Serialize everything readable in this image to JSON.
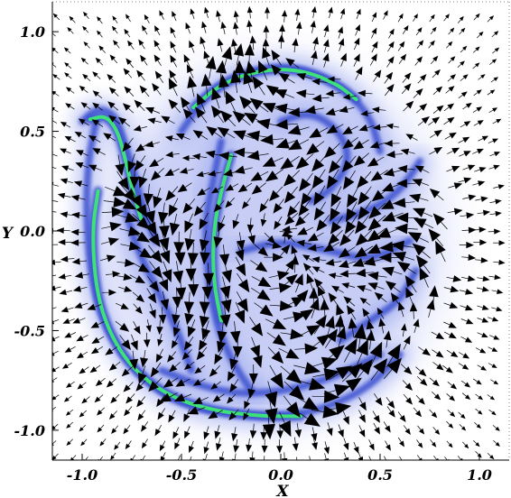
{
  "chart_data": {
    "type": "vector-field",
    "title": "",
    "xlabel": "X",
    "ylabel": "Y",
    "xlim": [
      -1.15,
      1.15
    ],
    "ylim": [
      -1.15,
      1.15
    ],
    "x_ticks": [
      -1.0,
      -0.5,
      0.0,
      0.5,
      1.0
    ],
    "y_ticks": [
      -1.0,
      -0.5,
      0.0,
      0.5,
      1.0
    ],
    "x_tick_labels": [
      "-1.0",
      "-0.5",
      "0.0",
      "0.5",
      "1.0"
    ],
    "y_tick_labels": [
      "-1.0",
      "-0.5",
      "0.0",
      "0.5",
      "1.0"
    ],
    "grid": false,
    "legend": "none",
    "colors": {
      "background": "#ffffff",
      "field_band": "#3a4fcf",
      "field_glow": "#9aa6ee",
      "current_sheet": "#3ee07a",
      "arrow": "#000000",
      "axes": "#000000"
    },
    "series": [
      {
        "kind": "density-band",
        "points": [
          [
            -1.0,
            0.55
          ],
          [
            -0.92,
            0.62
          ],
          [
            -0.83,
            0.58
          ],
          [
            -0.79,
            0.45
          ],
          [
            -0.74,
            0.3
          ],
          [
            -0.69,
            0.1
          ],
          [
            -0.63,
            -0.05
          ]
        ]
      },
      {
        "kind": "density-band",
        "points": [
          [
            -0.93,
            0.55
          ],
          [
            -0.97,
            0.35
          ],
          [
            -0.98,
            0.1
          ],
          [
            -0.96,
            -0.2
          ],
          [
            -0.9,
            -0.45
          ],
          [
            -0.78,
            -0.65
          ],
          [
            -0.6,
            -0.82
          ],
          [
            -0.4,
            -0.9
          ],
          [
            -0.15,
            -0.93
          ],
          [
            0.05,
            -0.93
          ],
          [
            0.25,
            -0.88
          ],
          [
            0.45,
            -0.78
          ],
          [
            0.6,
            -0.62
          ]
        ]
      },
      {
        "kind": "density-band",
        "points": [
          [
            -0.5,
            0.5
          ],
          [
            -0.35,
            0.72
          ],
          [
            -0.1,
            0.82
          ],
          [
            0.1,
            0.82
          ],
          [
            0.3,
            0.73
          ],
          [
            0.45,
            0.58
          ],
          [
            0.5,
            0.4
          ]
        ]
      },
      {
        "kind": "density-band",
        "points": [
          [
            -0.3,
            0.45
          ],
          [
            -0.34,
            0.25
          ],
          [
            -0.38,
            0.05
          ],
          [
            -0.37,
            -0.2
          ],
          [
            -0.33,
            -0.45
          ],
          [
            -0.25,
            -0.65
          ],
          [
            -0.15,
            -0.8
          ]
        ]
      },
      {
        "kind": "density-band",
        "points": [
          [
            -0.78,
            0.1
          ],
          [
            -0.72,
            -0.1
          ],
          [
            -0.62,
            -0.3
          ],
          [
            -0.52,
            -0.5
          ],
          [
            -0.45,
            -0.7
          ]
        ]
      },
      {
        "kind": "density-band",
        "points": [
          [
            0.0,
            0.55
          ],
          [
            0.15,
            0.6
          ],
          [
            0.3,
            0.5
          ],
          [
            0.35,
            0.35
          ],
          [
            0.25,
            0.2
          ],
          [
            0.15,
            0.15
          ]
        ]
      },
      {
        "kind": "density-band",
        "points": [
          [
            0.25,
            0.05
          ],
          [
            0.45,
            0.1
          ],
          [
            0.6,
            0.2
          ],
          [
            0.7,
            0.35
          ]
        ]
      },
      {
        "kind": "density-band",
        "points": [
          [
            -0.2,
            -0.1
          ],
          [
            0.0,
            -0.05
          ],
          [
            0.25,
            -0.1
          ],
          [
            0.45,
            -0.15
          ],
          [
            0.65,
            -0.05
          ]
        ]
      },
      {
        "kind": "density-band",
        "points": [
          [
            0.3,
            -0.55
          ],
          [
            0.45,
            -0.45
          ],
          [
            0.6,
            -0.35
          ],
          [
            0.68,
            -0.2
          ]
        ]
      },
      {
        "kind": "density-band",
        "points": [
          [
            -0.6,
            -0.7
          ],
          [
            -0.4,
            -0.78
          ],
          [
            -0.2,
            -0.82
          ],
          [
            0.05,
            -0.8
          ],
          [
            0.3,
            -0.72
          ],
          [
            0.5,
            -0.62
          ]
        ]
      },
      {
        "kind": "current-sheet",
        "points": [
          [
            -0.96,
            0.56
          ],
          [
            -0.88,
            0.58
          ],
          [
            -0.82,
            0.5
          ],
          [
            -0.78,
            0.35
          ],
          [
            -0.74,
            0.18
          ],
          [
            -0.7,
            0.05
          ]
        ]
      },
      {
        "kind": "current-sheet",
        "points": [
          [
            -0.92,
            0.2
          ],
          [
            -0.95,
            0.0
          ],
          [
            -0.93,
            -0.3
          ],
          [
            -0.86,
            -0.52
          ],
          [
            -0.74,
            -0.7
          ],
          [
            -0.56,
            -0.83
          ],
          [
            -0.35,
            -0.9
          ],
          [
            -0.1,
            -0.93
          ],
          [
            0.1,
            -0.93
          ]
        ]
      },
      {
        "kind": "current-sheet",
        "points": [
          [
            -0.44,
            0.62
          ],
          [
            -0.3,
            0.74
          ],
          [
            -0.1,
            0.81
          ],
          [
            0.1,
            0.81
          ],
          [
            0.28,
            0.74
          ],
          [
            0.38,
            0.66
          ]
        ]
      },
      {
        "kind": "current-sheet",
        "points": [
          [
            -0.25,
            0.38
          ],
          [
            -0.3,
            0.2
          ],
          [
            -0.34,
            0.0
          ],
          [
            -0.34,
            -0.25
          ],
          [
            -0.3,
            -0.45
          ]
        ]
      }
    ]
  }
}
